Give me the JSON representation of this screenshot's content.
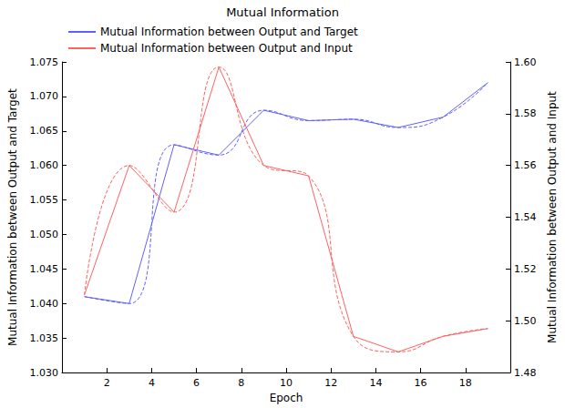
{
  "chart_data": {
    "type": "line",
    "title": "Mutual Information",
    "x_label": "Epoch",
    "y_label": "Mutual Information between Output and Target",
    "y2_label": "Mutual Information between Output and Input",
    "x": [
      1,
      3,
      5,
      7,
      9,
      11,
      13,
      15,
      17,
      19
    ],
    "series": [
      {
        "name": "Mutual Information between Output and Target",
        "color": "#6060ff",
        "axis": "y",
        "values": [
          1.041,
          1.04,
          1.063,
          1.0615,
          1.068,
          1.0665,
          1.0667,
          1.0655,
          1.067,
          1.072
        ]
      },
      {
        "name": "Mutual Information between Output and Input",
        "color": "#ff6060",
        "axis": "y2",
        "values": [
          1.51,
          1.56,
          1.542,
          1.598,
          1.56,
          1.556,
          1.494,
          1.488,
          1.494,
          1.497
        ]
      }
    ],
    "xlim": [
      0,
      20
    ],
    "xticks": [
      2,
      4,
      6,
      8,
      10,
      12,
      14,
      16,
      18
    ],
    "ylim": [
      1.03,
      1.075
    ],
    "yticks": [
      {
        "value": 1.03,
        "label": "1.030"
      },
      1.035,
      {
        "value": 1.04,
        "label": "1.040"
      },
      1.045,
      {
        "value": 1.05,
        "label": "1.050"
      },
      1.055,
      {
        "value": 1.06,
        "label": "1.060"
      },
      1.065,
      {
        "value": 1.07,
        "label": "1.070"
      },
      1.075
    ],
    "y2lim": [
      1.48,
      1.6
    ],
    "y2ticks": [
      1.48,
      {
        "value": 1.5,
        "label": "1.50"
      },
      1.52,
      1.54,
      1.56,
      1.58,
      {
        "value": 1.6,
        "label": "1.60"
      }
    ],
    "grid": false,
    "legend": "upper left"
  }
}
